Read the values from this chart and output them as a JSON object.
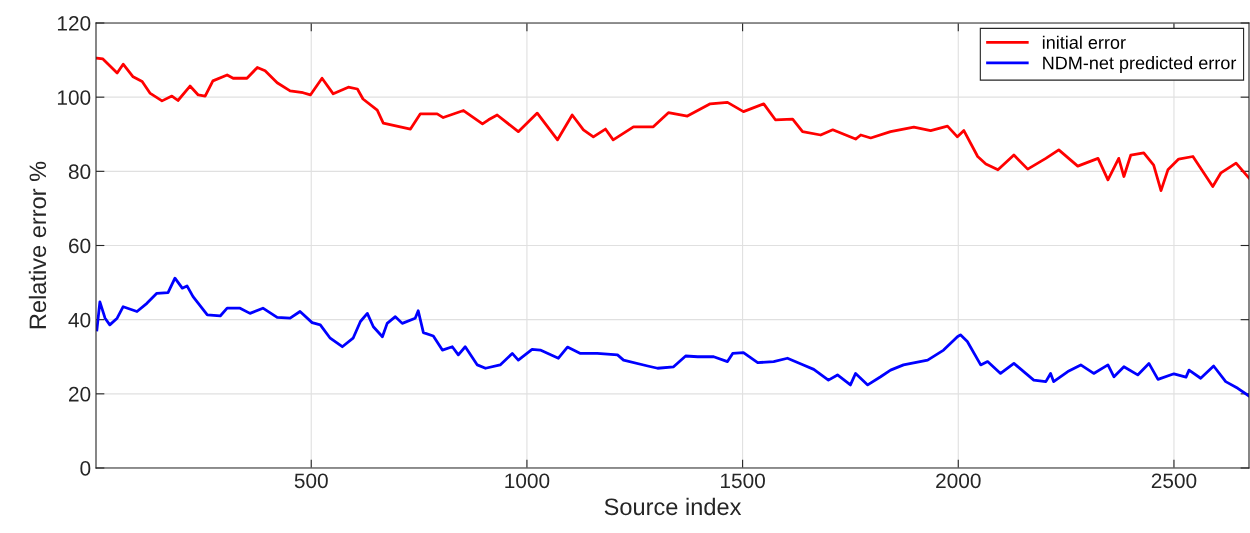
{
  "chart_data": {
    "type": "line",
    "xlabel": "Source index",
    "ylabel": "Relative error %",
    "xlim": [
      1,
      2674
    ],
    "xticks": [
      500,
      1000,
      1500,
      2000,
      2500
    ],
    "ylim": [
      0,
      120
    ],
    "yticks": [
      0,
      20,
      40,
      60,
      80,
      100,
      120
    ],
    "grid": true,
    "legend": "top right",
    "marker": "none",
    "line_style": "solid",
    "series": [
      {
        "name": "initial error",
        "color": "#ff0000",
        "x": [
          3,
          17,
          50,
          64,
          87,
          108,
          126,
          154,
          177,
          191,
          219,
          238,
          254,
          272,
          305,
          319,
          351,
          375,
          393,
          421,
          451,
          481,
          498,
          525,
          551,
          586,
          607,
          620,
          653,
          667,
          730,
          753,
          792,
          806,
          853,
          897,
          911,
          931,
          980,
          1024,
          1071,
          1105,
          1131,
          1154,
          1182,
          1200,
          1247,
          1293,
          1328,
          1372,
          1425,
          1465,
          1502,
          1549,
          1576,
          1616,
          1639,
          1681,
          1709,
          1762,
          1774,
          1797,
          1843,
          1897,
          1936,
          1975,
          1998,
          2013,
          2045,
          2064,
          2092,
          2129,
          2161,
          2203,
          2233,
          2277,
          2324,
          2347,
          2372,
          2384,
          2400,
          2430,
          2453,
          2470,
          2486,
          2511,
          2544,
          2590,
          2609,
          2644,
          2674
        ],
        "values": [
          110.5,
          110.3,
          106.5,
          108.9,
          105.5,
          104.2,
          101.1,
          99.0,
          100.3,
          99.1,
          103.0,
          100.6,
          100.3,
          104.4,
          106.0,
          105.1,
          105.1,
          108.0,
          107.1,
          103.9,
          101.7,
          101.2,
          100.6,
          105.1,
          100.9,
          102.7,
          102.2,
          99.5,
          96.5,
          93.0,
          91.4,
          95.5,
          95.5,
          94.5,
          96.4,
          92.8,
          93.9,
          95.2,
          90.7,
          95.7,
          88.5,
          95.2,
          91.2,
          89.3,
          91.4,
          88.5,
          92.0,
          92.0,
          95.8,
          94.9,
          98.2,
          98.6,
          96.1,
          98.2,
          93.9,
          94.1,
          90.7,
          89.8,
          91.2,
          88.7,
          89.8,
          89.0,
          90.7,
          91.9,
          91.0,
          92.2,
          89.3,
          91.0,
          84.0,
          82.0,
          80.4,
          84.4,
          80.6,
          83.5,
          85.8,
          81.4,
          83.5,
          77.7,
          83.5,
          78.6,
          84.4,
          85.0,
          81.7,
          74.8,
          80.4,
          83.3,
          84.0,
          75.9,
          79.6,
          82.2,
          78.2
        ]
      },
      {
        "name": "NDM-net predicted error",
        "color": "#0000ff",
        "x": [
          3,
          10,
          22,
          33,
          50,
          64,
          96,
          119,
          142,
          168,
          184,
          201,
          212,
          226,
          259,
          289,
          305,
          335,
          358,
          388,
          421,
          451,
          474,
          502,
          521,
          544,
          572,
          597,
          614,
          630,
          644,
          665,
          676,
          695,
          711,
          741,
          748,
          760,
          783,
          804,
          827,
          841,
          857,
          885,
          904,
          938,
          966,
          980,
          1012,
          1031,
          1073,
          1094,
          1124,
          1163,
          1210,
          1224,
          1280,
          1303,
          1340,
          1368,
          1396,
          1433,
          1465,
          1477,
          1502,
          1535,
          1572,
          1604,
          1641,
          1665,
          1699,
          1720,
          1750,
          1762,
          1790,
          1820,
          1843,
          1873,
          1929,
          1966,
          1998,
          2005,
          2021,
          2052,
          2068,
          2098,
          2129,
          2175,
          2203,
          2214,
          2221,
          2254,
          2284,
          2314,
          2347,
          2361,
          2384,
          2416,
          2442,
          2463,
          2500,
          2528,
          2535,
          2562,
          2592,
          2620,
          2648,
          2674
        ],
        "values": [
          37.2,
          44.8,
          40.4,
          38.6,
          40.4,
          43.5,
          42.2,
          44.4,
          47.1,
          47.3,
          51.2,
          48.5,
          49.1,
          46.2,
          41.3,
          41.0,
          43.1,
          43.1,
          41.7,
          43.1,
          40.6,
          40.4,
          42.2,
          39.2,
          38.6,
          35.0,
          32.7,
          35.0,
          39.5,
          41.7,
          38.1,
          35.4,
          39.0,
          40.8,
          39.0,
          40.4,
          42.4,
          36.5,
          35.6,
          31.8,
          32.7,
          30.5,
          32.7,
          27.8,
          26.9,
          27.8,
          30.9,
          29.1,
          32.0,
          31.8,
          29.6,
          32.6,
          30.9,
          30.9,
          30.5,
          29.1,
          27.5,
          26.9,
          27.3,
          30.2,
          30.0,
          30.0,
          28.7,
          30.9,
          31.1,
          28.4,
          28.7,
          29.6,
          27.8,
          26.6,
          23.7,
          25.1,
          22.4,
          25.5,
          22.4,
          24.6,
          26.4,
          27.8,
          29.1,
          31.8,
          35.4,
          35.9,
          34.1,
          27.8,
          28.7,
          25.5,
          28.2,
          23.7,
          23.3,
          25.5,
          23.3,
          26.0,
          27.8,
          25.5,
          27.8,
          24.6,
          27.3,
          25.1,
          28.2,
          23.9,
          25.4,
          24.5,
          26.4,
          24.2,
          27.5,
          23.3,
          21.5,
          19.4
        ]
      }
    ]
  }
}
